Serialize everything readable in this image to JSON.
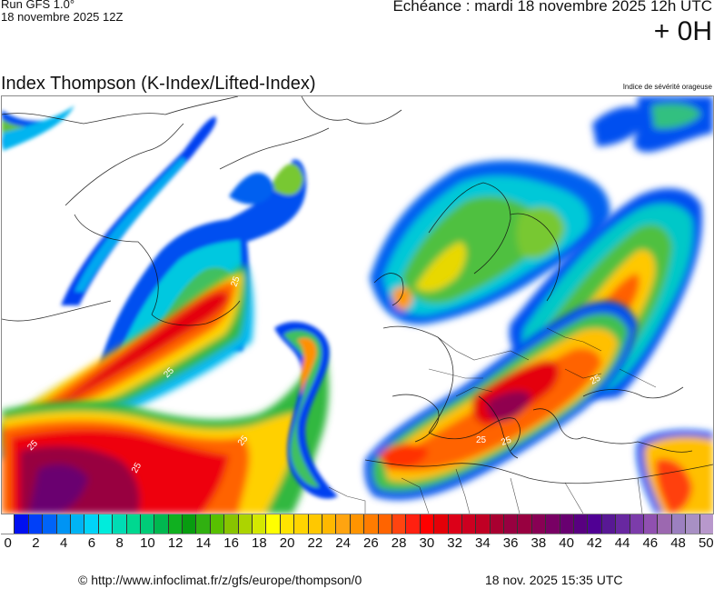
{
  "header": {
    "run_title": "Run GFS 1.0°",
    "run_date": "18 novembre 2025 12Z",
    "echeance": "Echéance : mardi 18 novembre 2025 12h UTC",
    "offset": "+ 0H"
  },
  "map": {
    "title": "Index Thompson (K-Index/Lifted-Index)",
    "subtitle": "Indice de sévérité orageuse",
    "region": "Atlantique Nord / Europe",
    "contour_label": "25",
    "contour_labels_count": 9
  },
  "colorbar": {
    "min": 0,
    "max": 50,
    "step": 1,
    "tick_labels": [
      "0",
      "2",
      "4",
      "6",
      "8",
      "10",
      "12",
      "14",
      "16",
      "18",
      "20",
      "22",
      "24",
      "26",
      "28",
      "30",
      "32",
      "34",
      "36",
      "38",
      "40",
      "42",
      "44",
      "46",
      "48",
      "50"
    ],
    "colors": [
      "#ffffff",
      "#0010f0",
      "#0040f8",
      "#0064f8",
      "#0094f4",
      "#00b4f4",
      "#00d4f8",
      "#00ecdc",
      "#00dcb4",
      "#00d890",
      "#00cc78",
      "#00b850",
      "#10b020",
      "#089c10",
      "#30b010",
      "#58c000",
      "#88c400",
      "#acd400",
      "#d4e800",
      "#ffff00",
      "#ffe400",
      "#ffd400",
      "#ffc800",
      "#ffb800",
      "#ffa410",
      "#ff9400",
      "#ff7c00",
      "#ff6400",
      "#ff4410",
      "#ff2010",
      "#ff0000",
      "#e40008",
      "#dc0018",
      "#cc0020",
      "#c00024",
      "#a80030",
      "#980040",
      "#980040",
      "#880054",
      "#780064",
      "#680070",
      "#580080",
      "#500094",
      "#581894",
      "#6828a0",
      "#7c3caa",
      "#9050b0",
      "#9c68b0",
      "#9c80c0",
      "#a890c4",
      "#b898cc"
    ]
  },
  "footer": {
    "credit": "© http://www.infoclimat.fr/z/gfs/europe/thompson/0",
    "generated": "18 nov. 2025 15:35 UTC"
  }
}
